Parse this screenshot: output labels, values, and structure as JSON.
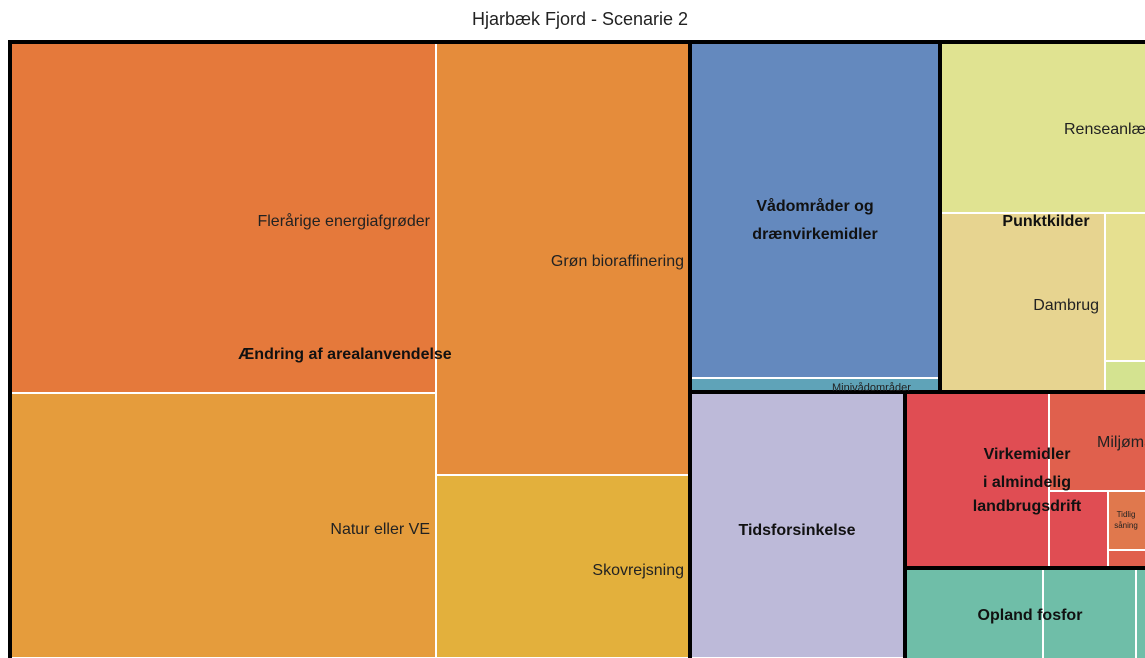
{
  "title": "Hjarbæk Fjord  - Scenarie 2",
  "groups": [
    {
      "label": "Ændring af arealanvendelse",
      "items": [
        "Flerårige energiafgrøder",
        "Natur eller VE",
        "Grøn bioraffinering",
        "Skovrejsning"
      ]
    },
    {
      "label": [
        "Vådområder og",
        "drænvirkemidler"
      ],
      "items": [
        "Minivådområder"
      ]
    },
    {
      "label": "Punktkilder",
      "items": [
        "Renseanlæg",
        "Dambrug"
      ]
    },
    {
      "label": "Tidsforsinkelse",
      "items": []
    },
    {
      "label": [
        "Virkemidler",
        "i almindelig",
        "landbrugsdrift"
      ],
      "items": [
        "Miljømajs",
        [
          "Tidlig",
          "såning"
        ]
      ]
    },
    {
      "label": "Opland fosfor",
      "items": []
    }
  ]
}
